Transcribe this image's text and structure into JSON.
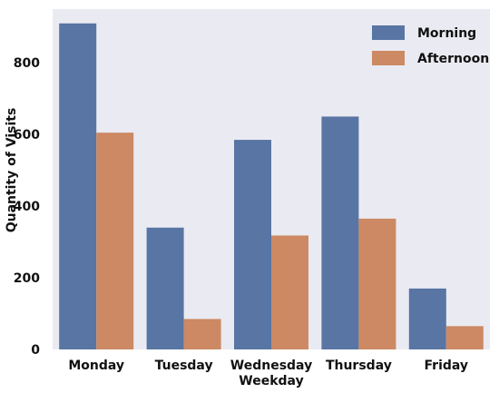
{
  "chart_data": {
    "type": "bar",
    "title": "",
    "xlabel": "Weekday",
    "ylabel": "Quantity of Visits",
    "categories": [
      "Monday",
      "Tuesday",
      "Wednesday",
      "Thursday",
      "Friday"
    ],
    "series": [
      {
        "name": "Morning",
        "values": [
          910,
          340,
          585,
          650,
          170
        ],
        "color": "#5875a4"
      },
      {
        "name": "Afternoon",
        "values": [
          605,
          85,
          318,
          365,
          65
        ],
        "color": "#cc8963"
      }
    ],
    "ylim": [
      0,
      950
    ],
    "yticks": [
      0,
      200,
      400,
      600,
      800
    ],
    "plot_background": "#eaeaf2",
    "grid": false,
    "legend_position": "top-right"
  }
}
